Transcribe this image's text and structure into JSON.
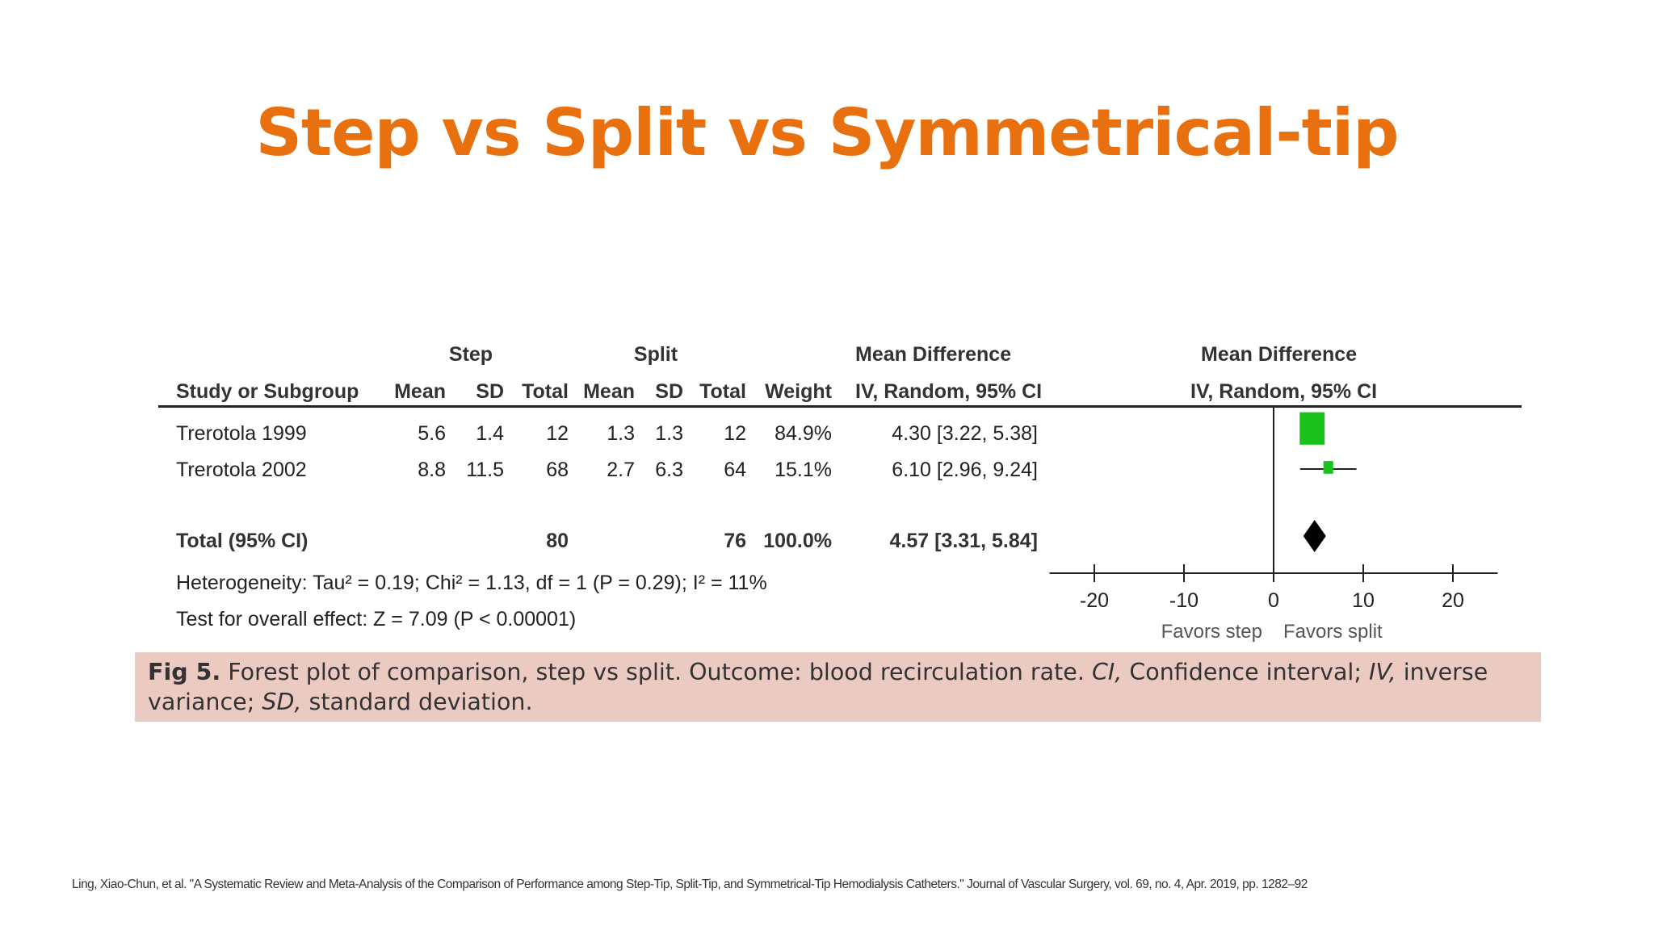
{
  "slide": {
    "title": "Step vs Split vs Symmetrical-tip",
    "footnote": "Ling, Xiao-Chun, et al. \"A Systematic Review and Meta-Analysis of the Comparison of Performance among Step-Tip, Split-Tip, and Symmetrical-Tip Hemodialysis Catheters.\" Journal of Vascular Surgery, vol. 69, no. 4, Apr. 2019, pp. 1282–92"
  },
  "figure": {
    "group_headers": {
      "step": "Step",
      "split": "Split",
      "mean_difference": "Mean Difference",
      "plot_mean_difference": "Mean Difference"
    },
    "columns": {
      "study": "Study or Subgroup",
      "step_mean": "Mean",
      "step_sd": "SD",
      "step_total": "Total",
      "split_mean": "Mean",
      "split_sd": "SD",
      "split_total": "Total",
      "weight": "Weight",
      "md": "IV, Random, 95% CI",
      "plot_md": "IV, Random, 95% CI"
    },
    "rows": [
      {
        "study": "Trerotola 1999",
        "step_mean": "5.6",
        "step_sd": "1.4",
        "step_total": "12",
        "split_mean": "1.3",
        "split_sd": "1.3",
        "split_total": "12",
        "weight": "84.9%",
        "ci": "4.30 [3.22, 5.38]"
      },
      {
        "study": "Trerotola 2002",
        "step_mean": "8.8",
        "step_sd": "11.5",
        "step_total": "68",
        "split_mean": "2.7",
        "split_sd": "6.3",
        "split_total": "64",
        "weight": "15.1%",
        "ci": "6.10 [2.96, 9.24]"
      }
    ],
    "total": {
      "label": "Total (95% CI)",
      "step_total": "80",
      "split_total": "76",
      "weight": "100.0%",
      "ci": "4.57 [3.31, 5.84]"
    },
    "heterogeneity": "Heterogeneity: Tau² = 0.19; Chi² = 1.13, df = 1 (P = 0.29); I² = 11%",
    "overall_effect": "Test for overall effect: Z = 7.09 (P < 0.00001)",
    "caption": {
      "label": "Fig 5.",
      "text1": " Forest plot of comparison, step vs split. Outcome: blood recirculation rate. ",
      "ci_abbr": "CI,",
      "text2": " Confidence interval; ",
      "iv_abbr": "IV,",
      "text3": " inverse variance; ",
      "sd_abbr": "SD,",
      "text4": " standard deviation."
    }
  },
  "chart_data": {
    "type": "forest",
    "xlim": [
      -25,
      25
    ],
    "ticks": [
      -20,
      -10,
      0,
      10,
      20
    ],
    "tick_labels": [
      "-20",
      "-10",
      "0",
      "10",
      "20"
    ],
    "favors_left": "Favors step",
    "favors_right": "Favors split",
    "studies": [
      {
        "name": "Trerotola 1999",
        "estimate": 4.3,
        "lower": 3.22,
        "upper": 5.38,
        "weight": 84.9
      },
      {
        "name": "Trerotola 2002",
        "estimate": 6.1,
        "lower": 2.96,
        "upper": 9.24,
        "weight": 15.1
      }
    ],
    "pooled": {
      "estimate": 4.57,
      "lower": 3.31,
      "upper": 5.84
    },
    "colors": {
      "study_marker": "#1cc21c",
      "pooled_marker": "#000000",
      "line": "#222222"
    }
  }
}
